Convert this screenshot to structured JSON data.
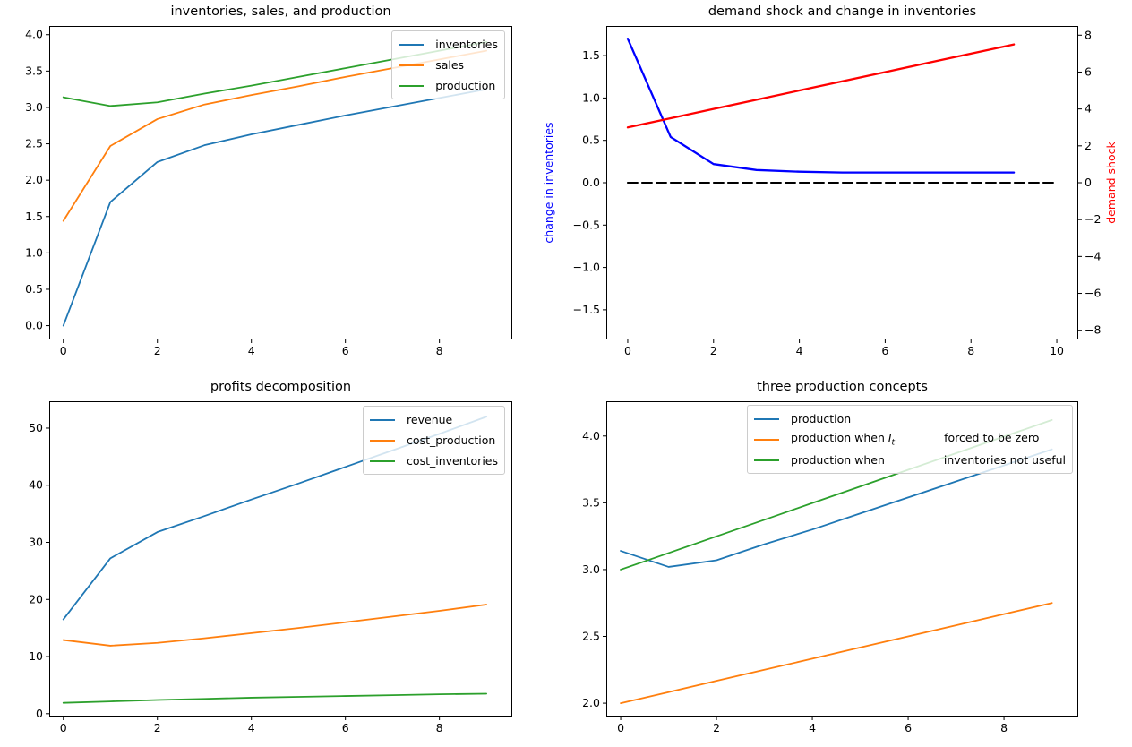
{
  "figure": {
    "background": "#ffffff"
  },
  "colors": {
    "tab_blue": "#1f77b4",
    "tab_orange": "#ff7f0e",
    "tab_green": "#2ca02c",
    "pure_blue": "#0000ff",
    "pure_red": "#ff0000",
    "black": "#000000",
    "legend_border": "#cccccc"
  },
  "chart_data": [
    {
      "id": "inventories-sales-production",
      "type": "line",
      "title": "inventories, sales, and production",
      "x": [
        0,
        1,
        2,
        3,
        4,
        5,
        6,
        7,
        8,
        9
      ],
      "xlim": [
        -0.3,
        9.55
      ],
      "ylim": [
        -0.19,
        4.12
      ],
      "xticks": {
        "values": [
          0,
          2,
          4,
          6,
          8
        ],
        "labels": [
          "0",
          "2",
          "4",
          "6",
          "8"
        ]
      },
      "yticks": {
        "values": [
          0,
          0.5,
          1,
          1.5,
          2,
          2.5,
          3,
          3.5,
          4
        ],
        "labels": [
          "0.0",
          "0.5",
          "1.0",
          "1.5",
          "2.0",
          "2.5",
          "3.0",
          "3.5",
          "4.0"
        ]
      },
      "grid": false,
      "legend": {
        "pos": {
          "right": 8,
          "top": 5
        },
        "entries": [
          {
            "label": "inventories"
          },
          {
            "label": "sales"
          },
          {
            "label": "production"
          }
        ]
      },
      "series": [
        {
          "name": "inventories",
          "color": "#1f77b4",
          "width": 1.8,
          "values": [
            0.0,
            1.7,
            2.25,
            2.48,
            2.63,
            2.76,
            2.89,
            3.01,
            3.13,
            3.25
          ]
        },
        {
          "name": "sales",
          "color": "#ff7f0e",
          "width": 1.8,
          "values": [
            1.44,
            2.47,
            2.84,
            3.04,
            3.17,
            3.29,
            3.42,
            3.54,
            3.66,
            3.78
          ]
        },
        {
          "name": "production",
          "color": "#2ca02c",
          "width": 1.8,
          "values": [
            3.14,
            3.02,
            3.07,
            3.19,
            3.3,
            3.42,
            3.54,
            3.66,
            3.78,
            3.9
          ]
        }
      ]
    },
    {
      "id": "demand-shock-change-in-inventories",
      "type": "line",
      "title": "demand shock and change in inventories",
      "x": [
        0,
        1,
        2,
        3,
        4,
        5,
        6,
        7,
        8,
        9
      ],
      "xlim": [
        -0.5,
        10.5
      ],
      "ylim": [
        -1.85,
        1.85
      ],
      "ylim_right": [
        -8.5,
        8.5
      ],
      "xticks": {
        "values": [
          0,
          2,
          4,
          6,
          8,
          10
        ],
        "labels": [
          "0",
          "2",
          "4",
          "6",
          "8",
          "10"
        ]
      },
      "yticks": {
        "values": [
          -1.5,
          -1,
          -0.5,
          0,
          0.5,
          1,
          1.5
        ],
        "labels": [
          "−1.5",
          "−1.0",
          "−0.5",
          "0.0",
          "0.5",
          "1.0",
          "1.5"
        ]
      },
      "yticks_right": {
        "values": [
          -8,
          -6,
          -4,
          -2,
          0,
          2,
          4,
          6,
          8
        ],
        "labels": [
          "−8",
          "−6",
          "−4",
          "−2",
          "0",
          "2",
          "4",
          "6",
          "8"
        ]
      },
      "ylabel_left": {
        "text": "change in inventories",
        "color": "#0000ff"
      },
      "ylabel_right": {
        "text": "demand shock",
        "color": "#ff0000"
      },
      "grid": false,
      "legend": null,
      "series": [
        {
          "name": "change in inventories",
          "color": "#0000ff",
          "width": 2.3,
          "values": [
            1.7,
            0.54,
            0.22,
            0.15,
            0.13,
            0.12,
            0.12,
            0.12,
            0.12,
            0.12
          ]
        },
        {
          "name": "demand shock",
          "color": "#ff0000",
          "width": 2.3,
          "axis": "right",
          "values": [
            3.0,
            3.5,
            4.0,
            4.5,
            5.0,
            5.5,
            6.0,
            6.5,
            7.0,
            7.5
          ]
        },
        {
          "name": "zero line",
          "color": "#000000",
          "width": 2,
          "dash": [
            11,
            5
          ],
          "x_override": [
            0,
            10
          ],
          "values": [
            0,
            0
          ]
        }
      ]
    },
    {
      "id": "profits-decomposition",
      "type": "line",
      "title": "profits decomposition",
      "x": [
        0,
        1,
        2,
        3,
        4,
        5,
        6,
        7,
        8,
        9
      ],
      "xlim": [
        -0.3,
        9.55
      ],
      "ylim": [
        -0.5,
        54.7
      ],
      "xticks": {
        "values": [
          0,
          2,
          4,
          6,
          8
        ],
        "labels": [
          "0",
          "2",
          "4",
          "6",
          "8"
        ]
      },
      "yticks": {
        "values": [
          0,
          10,
          20,
          30,
          40,
          50
        ],
        "labels": [
          "0",
          "10",
          "20",
          "30",
          "40",
          "50"
        ]
      },
      "grid": false,
      "legend": {
        "pos": {
          "right": 8,
          "top": 5
        },
        "entries": [
          {
            "label": "revenue"
          },
          {
            "label": "cost_production"
          },
          {
            "label": "cost_inventories"
          }
        ]
      },
      "series": [
        {
          "name": "revenue",
          "color": "#1f77b4",
          "width": 1.8,
          "values": [
            16.5,
            27.2,
            31.8,
            34.6,
            37.5,
            40.3,
            43.2,
            46.1,
            49.0,
            52.0
          ]
        },
        {
          "name": "cost_production",
          "color": "#ff7f0e",
          "width": 1.8,
          "values": [
            12.9,
            11.9,
            12.4,
            13.2,
            14.1,
            15.0,
            16.0,
            17.0,
            18.0,
            19.1
          ]
        },
        {
          "name": "cost_inventories",
          "color": "#2ca02c",
          "width": 1.8,
          "values": [
            1.9,
            2.15,
            2.4,
            2.6,
            2.8,
            2.95,
            3.1,
            3.25,
            3.4,
            3.5
          ]
        }
      ]
    },
    {
      "id": "three-production-concepts",
      "type": "line",
      "title": "three production concepts",
      "x": [
        0,
        1,
        2,
        3,
        4,
        5,
        6,
        7,
        8,
        9
      ],
      "xlim": [
        -0.3,
        9.55
      ],
      "ylim": [
        1.9,
        4.26
      ],
      "xticks": {
        "values": [
          0,
          2,
          4,
          6,
          8
        ],
        "labels": [
          "0",
          "2",
          "4",
          "6",
          "8"
        ]
      },
      "yticks": {
        "values": [
          2,
          2.5,
          3,
          3.5,
          4
        ],
        "labels": [
          "2.0",
          "2.5",
          "3.0",
          "3.5",
          "4.0"
        ]
      },
      "grid": false,
      "legend": {
        "pos": {
          "right": 6,
          "top": 4
        },
        "entries": [
          {
            "label": "production",
            "parts": [
              {
                "text": "production"
              }
            ]
          },
          {
            "label": "production when It forced to be zero",
            "parts": [
              {
                "text": "production when "
              },
              {
                "math": "I",
                "sub": "t"
              },
              {
                "gap": 55
              },
              {
                "text": "forced to be zero"
              }
            ]
          },
          {
            "label": "production when inventories not useful",
            "parts": [
              {
                "text": "production when"
              },
              {
                "gap": 66
              },
              {
                "text": "inventories not useful"
              }
            ]
          }
        ]
      },
      "series": [
        {
          "name": "production",
          "color": "#1f77b4",
          "width": 1.8,
          "values": [
            3.14,
            3.02,
            3.07,
            3.19,
            3.3,
            3.42,
            3.54,
            3.66,
            3.78,
            3.9
          ]
        },
        {
          "name": "production when It forced to be zero",
          "color": "#ff7f0e",
          "width": 1.8,
          "values": [
            2.0,
            2.083,
            2.167,
            2.25,
            2.333,
            2.417,
            2.5,
            2.583,
            2.667,
            2.75
          ]
        },
        {
          "name": "production when inventories not useful",
          "color": "#2ca02c",
          "width": 1.8,
          "values": [
            3.0,
            3.124,
            3.249,
            3.373,
            3.498,
            3.622,
            3.747,
            3.871,
            3.996,
            4.12
          ]
        }
      ]
    }
  ]
}
